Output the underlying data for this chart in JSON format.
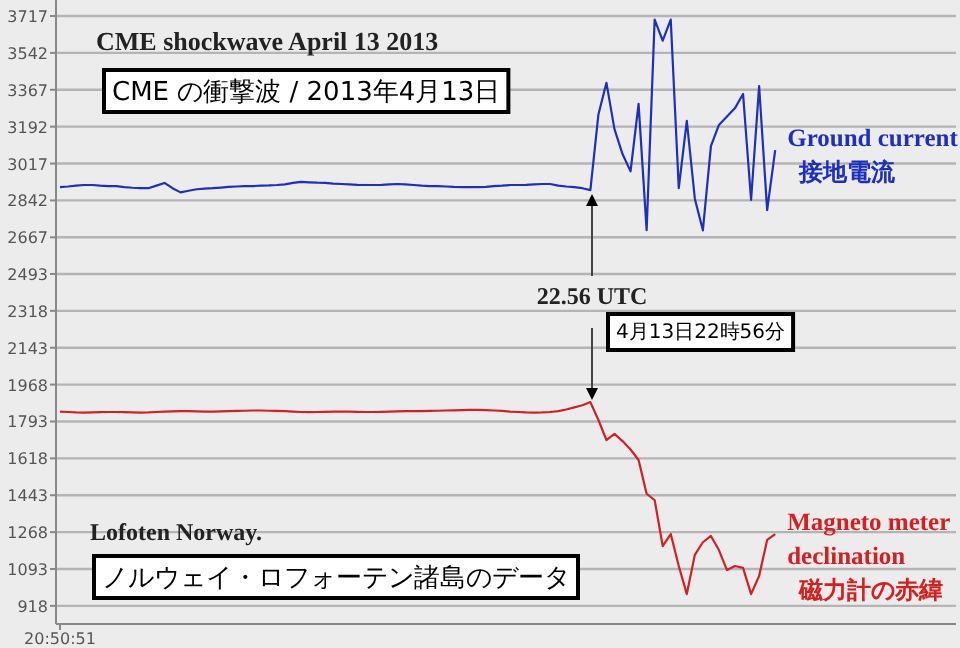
{
  "chart_data": {
    "type": "line",
    "title": "CME shockwave  April 13 2013",
    "subtitle": "CME の衝撃波 / 2013年4月13日",
    "categories": [
      "20:50:51",
      null,
      null,
      null,
      null,
      null,
      null,
      null,
      null,
      null,
      null,
      null,
      null,
      null,
      null,
      null,
      null,
      null,
      null,
      null,
      null,
      null,
      null,
      null,
      null,
      null,
      null,
      null,
      null,
      null,
      null,
      null,
      null,
      null,
      null,
      null,
      null,
      null,
      null,
      null,
      null,
      null,
      null,
      null,
      null,
      null,
      null,
      null,
      null,
      null,
      null,
      null,
      null,
      null,
      null,
      null,
      null,
      null,
      null,
      null,
      null,
      null,
      null,
      null,
      null,
      null,
      null,
      null,
      null,
      null,
      null,
      null,
      null,
      null,
      null,
      null,
      null,
      null,
      null,
      null,
      null,
      null,
      null,
      null,
      null,
      null,
      null,
      null,
      null,
      null,
      null,
      null,
      null,
      null,
      null,
      null,
      null,
      null,
      null,
      null,
      null,
      null,
      null,
      null,
      null,
      null,
      null,
      null,
      null,
      null,
      null,
      null
    ],
    "ylim": [
      832,
      3793
    ],
    "yticks": [
      918,
      1093,
      1268,
      1443,
      1618,
      1793,
      1968,
      2143,
      2318,
      2493,
      2667,
      2842,
      3017,
      3192,
      3367,
      3542,
      3717
    ],
    "grid": "y",
    "marker": "none",
    "line_style": "solid",
    "series": [
      {
        "name": "Ground current\n接地電流",
        "color": "#1c2fc0",
        "values": [
          2905,
          2908,
          2912,
          2915,
          2915,
          2912,
          2910,
          2910,
          2905,
          2902,
          2900,
          2900,
          2912,
          2925,
          2900,
          2880,
          2888,
          2895,
          2898,
          2900,
          2903,
          2906,
          2908,
          2910,
          2910,
          2912,
          2913,
          2915,
          2918,
          2925,
          2930,
          2928,
          2926,
          2925,
          2922,
          2920,
          2918,
          2916,
          2915,
          2915,
          2916,
          2918,
          2920,
          2918,
          2915,
          2912,
          2910,
          2910,
          2908,
          2906,
          2905,
          2905,
          2905,
          2906,
          2910,
          2912,
          2915,
          2915,
          2916,
          2918,
          2920,
          2920,
          2912,
          2908,
          2905,
          2900,
          2891,
          3250,
          3400,
          3180,
          3062,
          2980,
          3300,
          2701,
          3700,
          3600,
          3700,
          2900,
          3220,
          2850,
          2700,
          3100,
          3200,
          3240,
          3280,
          3347,
          2844,
          3385,
          2796,
          3081,
          null,
          null,
          null,
          null,
          null,
          null,
          null,
          null,
          null,
          null,
          null,
          null,
          null,
          null,
          null,
          null,
          null,
          null,
          null,
          null,
          null,
          null
        ]
      },
      {
        "name": "Magneto meter\ndeclination\n磁力計の赤緯",
        "color": "#d42020",
        "values": [
          1840,
          1838,
          1836,
          1835,
          1836,
          1837,
          1838,
          1838,
          1837,
          1836,
          1835,
          1836,
          1838,
          1840,
          1841,
          1842,
          1842,
          1841,
          1840,
          1840,
          1841,
          1842,
          1843,
          1844,
          1845,
          1845,
          1844,
          1843,
          1842,
          1840,
          1838,
          1837,
          1838,
          1839,
          1840,
          1840,
          1840,
          1839,
          1838,
          1838,
          1839,
          1840,
          1841,
          1842,
          1842,
          1842,
          1843,
          1844,
          1845,
          1846,
          1847,
          1848,
          1848,
          1847,
          1845,
          1843,
          1840,
          1838,
          1836,
          1835,
          1836,
          1838,
          1842,
          1850,
          1860,
          1870,
          1885,
          1800,
          1705,
          1734,
          1700,
          1660,
          1610,
          1450,
          1420,
          1202,
          1259,
          1107,
          974,
          1160,
          1220,
          1250,
          1183,
          1088,
          1107,
          1098,
          974,
          1060,
          1231,
          1259,
          null,
          null,
          null,
          null,
          null,
          null,
          null,
          null,
          null,
          null,
          null,
          null,
          null,
          null,
          null,
          null,
          null,
          null,
          null,
          null,
          null,
          null
        ]
      }
    ],
    "annotations": [
      "22.56 UTC",
      "4月13日22時56分",
      "Lofoten Norway.",
      "ノルウェイ・ロフォーテン諸島のデータ"
    ]
  }
}
